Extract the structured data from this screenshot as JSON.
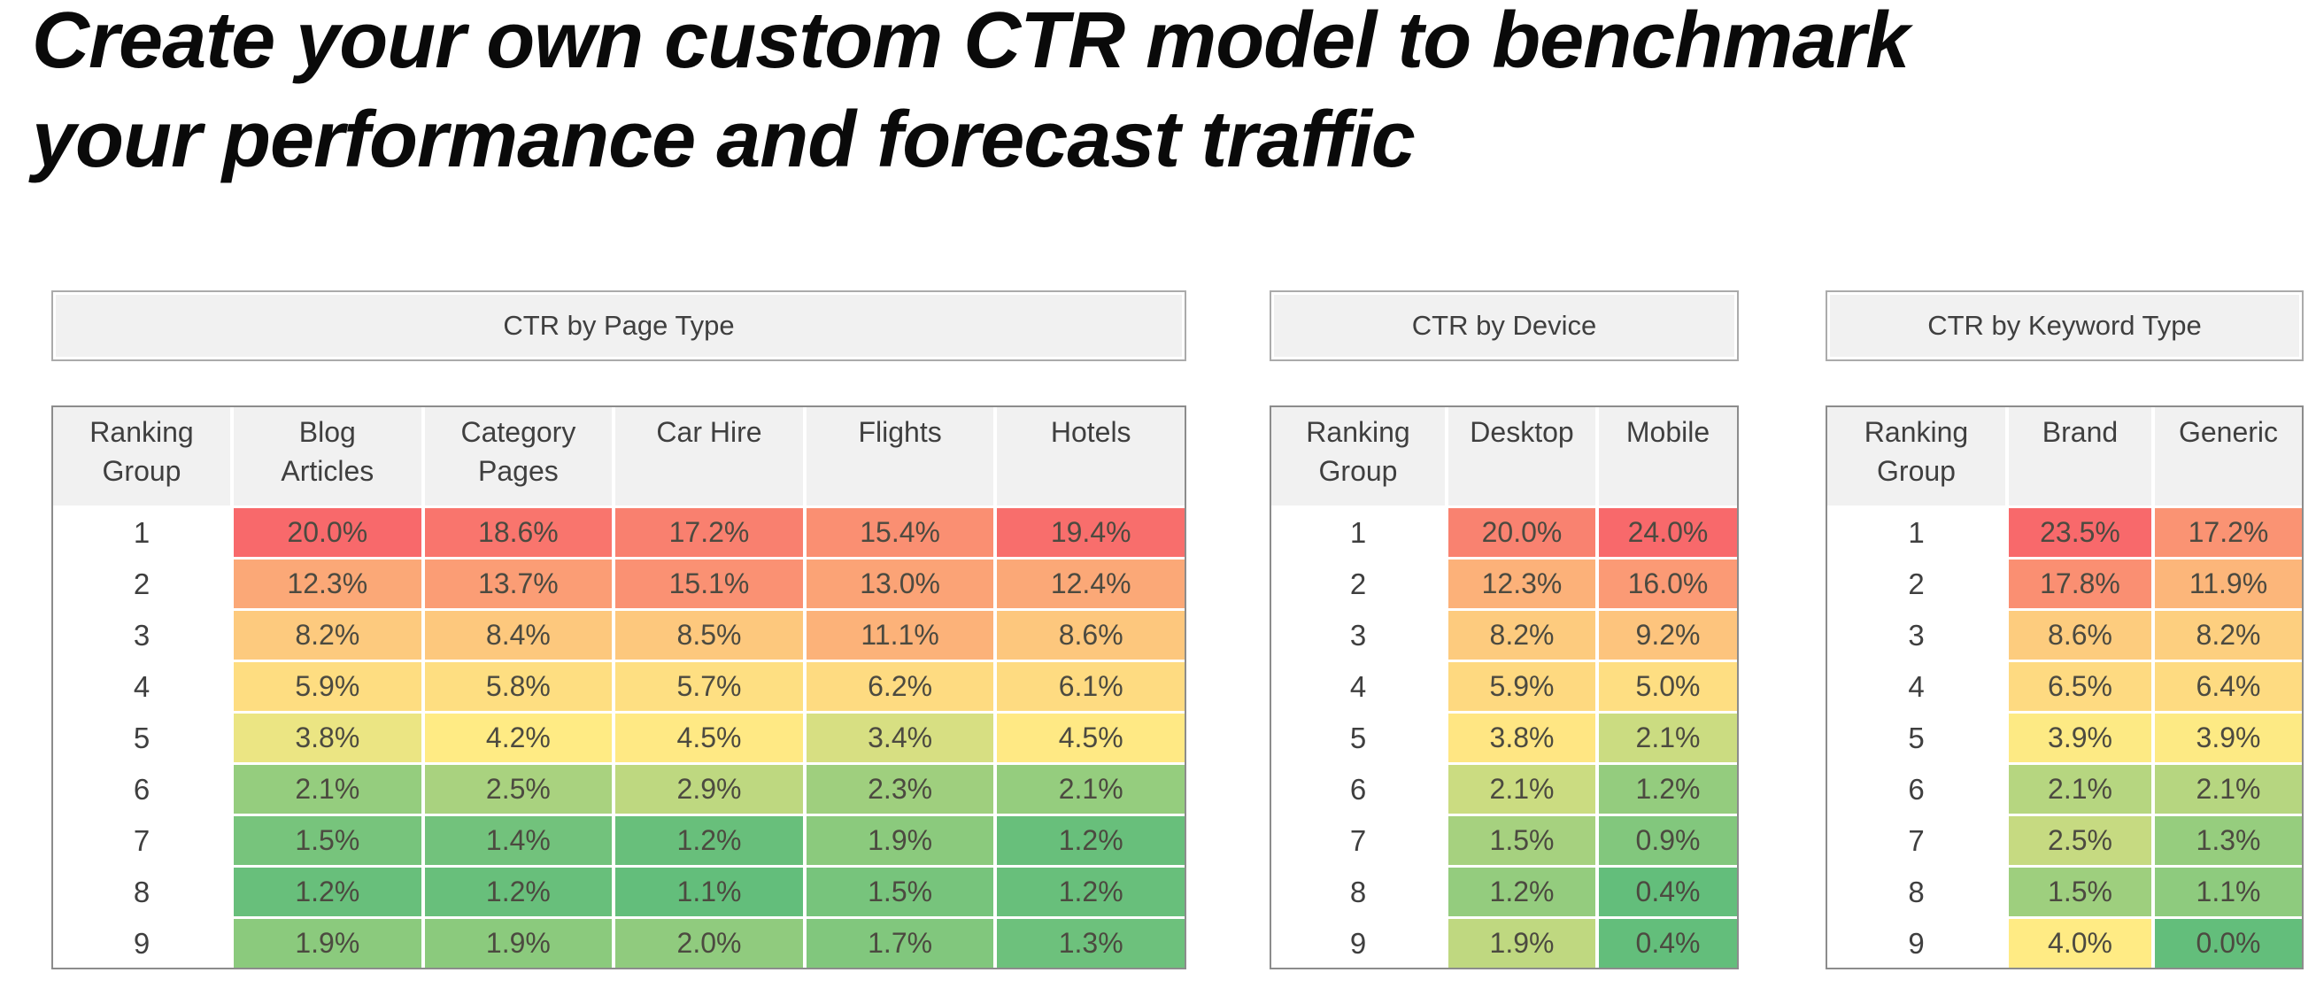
{
  "title": {
    "lines": [
      "Create your own custom CTR model to benchmark",
      "your performance and forecast traffic"
    ]
  },
  "colors": {
    "scale_max_red": "#F8696B",
    "scale_mid_yellow": "#FFEB84",
    "scale_min_green": "#63BE7B",
    "panel_fill": "#F1F1F1",
    "panel_border": "#ABABAB",
    "table_border": "#8C8C8C",
    "header_fill": "#F1F1F1",
    "text_dark": "#3F3F3F"
  },
  "chart_data": [
    {
      "type": "heatmap",
      "title": "CTR by Page Type",
      "row_label_header": "Ranking Group",
      "categories_rows": [
        1,
        2,
        3,
        4,
        5,
        6,
        7,
        8,
        9
      ],
      "unit": "%",
      "value_format": "one_decimal_percent",
      "color_scale": {
        "max_color": "#F8696B",
        "mid_color": "#FFEB84",
        "min_color": "#63BE7B",
        "midpoint": "median",
        "high_is_red": true
      },
      "series": [
        {
          "name": "Blog Articles",
          "values": [
            20.0,
            12.3,
            8.2,
            5.9,
            3.8,
            2.1,
            1.5,
            1.2,
            1.9
          ]
        },
        {
          "name": "Category Pages",
          "values": [
            18.6,
            13.7,
            8.4,
            5.8,
            4.2,
            2.5,
            1.4,
            1.2,
            1.9
          ]
        },
        {
          "name": "Car Hire",
          "values": [
            17.2,
            15.1,
            8.5,
            5.7,
            4.5,
            2.9,
            1.2,
            1.1,
            2.0
          ]
        },
        {
          "name": "Flights",
          "values": [
            15.4,
            13.0,
            11.1,
            6.2,
            3.4,
            2.3,
            1.9,
            1.5,
            1.7
          ]
        },
        {
          "name": "Hotels",
          "values": [
            19.4,
            12.4,
            8.6,
            6.1,
            4.5,
            2.1,
            1.2,
            1.2,
            1.3
          ]
        }
      ]
    },
    {
      "type": "heatmap",
      "title": "CTR by Device",
      "row_label_header": "Ranking Group",
      "categories_rows": [
        1,
        2,
        3,
        4,
        5,
        6,
        7,
        8,
        9
      ],
      "unit": "%",
      "value_format": "one_decimal_percent",
      "color_scale": {
        "max_color": "#F8696B",
        "mid_color": "#FFEB84",
        "min_color": "#63BE7B",
        "midpoint": "median",
        "high_is_red": true
      },
      "series": [
        {
          "name": "Desktop",
          "values": [
            20.0,
            12.3,
            8.2,
            5.9,
            3.8,
            2.1,
            1.5,
            1.2,
            1.9
          ]
        },
        {
          "name": "Mobile",
          "values": [
            24.0,
            16.0,
            9.2,
            5.0,
            2.1,
            1.2,
            0.9,
            0.4,
            0.4
          ]
        }
      ]
    },
    {
      "type": "heatmap",
      "title": "CTR by Keyword Type",
      "row_label_header": "Ranking Group",
      "categories_rows": [
        1,
        2,
        3,
        4,
        5,
        6,
        7,
        8,
        9
      ],
      "unit": "%",
      "value_format": "one_decimal_percent",
      "color_scale": {
        "max_color": "#F8696B",
        "mid_color": "#FFEB84",
        "min_color": "#63BE7B",
        "midpoint": "median",
        "high_is_red": true
      },
      "series": [
        {
          "name": "Brand",
          "values": [
            23.5,
            17.8,
            8.6,
            6.5,
            3.9,
            2.1,
            2.5,
            1.5,
            4.0
          ]
        },
        {
          "name": "Generic",
          "values": [
            17.2,
            11.9,
            8.2,
            6.4,
            3.9,
            2.1,
            1.3,
            1.1,
            0.0
          ]
        }
      ]
    }
  ]
}
